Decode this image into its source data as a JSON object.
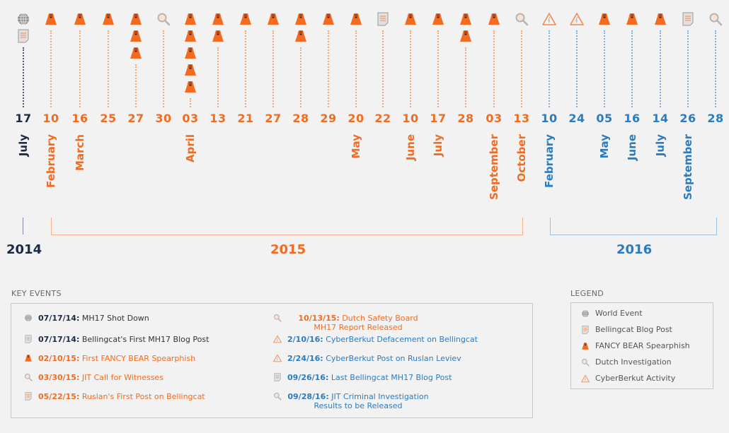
{
  "colors": {
    "navy": "#1c2b45",
    "orange": "#f26b21",
    "blue": "#2b7bc0",
    "gray": "#9a9a9a"
  },
  "timeline": [
    {
      "day": "17",
      "color": "navy",
      "month": "July",
      "icons": [
        "globe",
        "doc"
      ]
    },
    {
      "day": "10",
      "color": "orange",
      "month": "February",
      "icons": [
        "bear"
      ]
    },
    {
      "day": "16",
      "color": "orange",
      "month": "March",
      "icons": [
        "bear"
      ]
    },
    {
      "day": "25",
      "color": "orange",
      "month": "",
      "icons": [
        "bear"
      ]
    },
    {
      "day": "27",
      "color": "orange",
      "month": "",
      "icons": [
        "bear",
        "bear",
        "bear"
      ]
    },
    {
      "day": "30",
      "color": "orange",
      "month": "",
      "icons": [
        "mag"
      ]
    },
    {
      "day": "03",
      "color": "orange",
      "month": "April",
      "icons": [
        "bear",
        "bear",
        "bear",
        "bear",
        "bear"
      ]
    },
    {
      "day": "13",
      "color": "orange",
      "month": "",
      "icons": [
        "bear",
        "bear"
      ]
    },
    {
      "day": "21",
      "color": "orange",
      "month": "",
      "icons": [
        "bear"
      ]
    },
    {
      "day": "27",
      "color": "orange",
      "month": "",
      "icons": [
        "bear"
      ]
    },
    {
      "day": "28",
      "color": "orange",
      "month": "",
      "icons": [
        "bear",
        "bear"
      ]
    },
    {
      "day": "29",
      "color": "orange",
      "month": "",
      "icons": [
        "bear"
      ]
    },
    {
      "day": "20",
      "color": "orange",
      "month": "May",
      "icons": [
        "bear"
      ]
    },
    {
      "day": "22",
      "color": "orange",
      "month": "",
      "icons": [
        "doc"
      ]
    },
    {
      "day": "10",
      "color": "orange",
      "month": "June",
      "icons": [
        "bear"
      ]
    },
    {
      "day": "17",
      "color": "orange",
      "month": "July",
      "icons": [
        "bear"
      ]
    },
    {
      "day": "28",
      "color": "orange",
      "month": "",
      "icons": [
        "bear",
        "bear"
      ]
    },
    {
      "day": "03",
      "color": "orange",
      "month": "September",
      "icons": [
        "bear"
      ]
    },
    {
      "day": "13",
      "color": "orange",
      "month": "October",
      "icons": [
        "mag"
      ]
    },
    {
      "day": "10",
      "color": "blue",
      "month": "February",
      "icons": [
        "warn"
      ]
    },
    {
      "day": "24",
      "color": "blue",
      "month": "",
      "icons": [
        "warn"
      ]
    },
    {
      "day": "05",
      "color": "blue",
      "month": "May",
      "icons": [
        "bear"
      ]
    },
    {
      "day": "16",
      "color": "blue",
      "month": "June",
      "icons": [
        "bear"
      ]
    },
    {
      "day": "14",
      "color": "blue",
      "month": "July",
      "icons": [
        "bear"
      ]
    },
    {
      "day": "26",
      "color": "blue",
      "month": "September",
      "icons": [
        "doc"
      ]
    },
    {
      "day": "28",
      "color": "blue",
      "month": "",
      "icons": [
        "mag"
      ]
    }
  ],
  "years": {
    "y2014": "2014",
    "y2015": "2015",
    "y2016": "2016"
  },
  "key_events": {
    "title": "KEY EVENTS",
    "items": [
      {
        "icon": "globe",
        "date": "07/17/14:",
        "text": "MH17 Shot Down",
        "color": "navy"
      },
      {
        "icon": "doc",
        "date": "07/17/14:",
        "text": "Bellingcat's First MH17 Blog Post",
        "color": "navy"
      },
      {
        "icon": "bear",
        "date": "02/10/15:",
        "text": "First FANCY BEAR Spearphish",
        "color": "orange"
      },
      {
        "icon": "mag",
        "date": "03/30/15:",
        "text": "JIT Call for Witnesses",
        "color": "orange"
      },
      {
        "icon": "doc",
        "date": "05/22/15:",
        "text": "Ruslan's First Post on Bellingcat",
        "color": "orange"
      },
      {
        "icon": "mag",
        "date": "10/13/15:",
        "text": "Dutch Safety Board MH17 Report Released",
        "color": "orange"
      },
      {
        "icon": "warn",
        "date": "2/10/16:",
        "text": "CyberBerkut Defacement on Bellingcat",
        "color": "blue"
      },
      {
        "icon": "warn",
        "date": "2/24/16:",
        "text": "CyberBerkut Post on Ruslan Leviev",
        "color": "blue"
      },
      {
        "icon": "doc",
        "date": "09/26/16:",
        "text": "Last Bellingcat MH17 Blog Post",
        "color": "blue"
      },
      {
        "icon": "mag",
        "date": "09/28/16:",
        "text": "JIT Criminal Investigation Results to be Released",
        "color": "blue"
      }
    ]
  },
  "legend": {
    "title": "LEGEND",
    "items": [
      {
        "icon": "globe",
        "label": "World Event"
      },
      {
        "icon": "doc",
        "label": "Bellingcat Blog Post"
      },
      {
        "icon": "bear",
        "label": "FANCY BEAR Spearphish"
      },
      {
        "icon": "mag",
        "label": "Dutch Investigation"
      },
      {
        "icon": "warn",
        "label": "CyberBerkut Activity"
      }
    ]
  }
}
